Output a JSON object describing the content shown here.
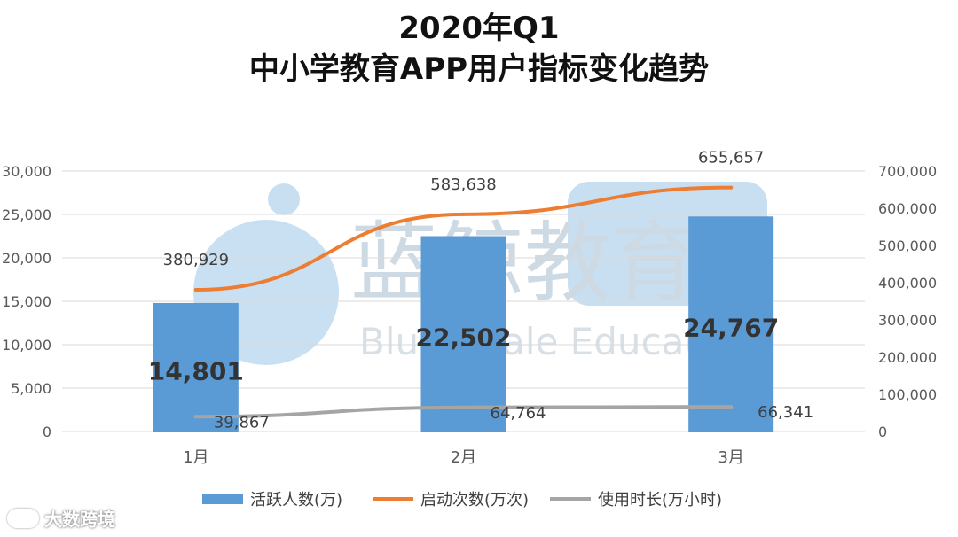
{
  "title_line1": "2020年Q1",
  "title_line2": "中小学教育APP用户指标变化趋势",
  "watermark": {
    "cn": "蓝鲸教育",
    "en": "BlueWhale Education",
    "color": "#7fb2dd"
  },
  "source_label": "大数跨境",
  "colors": {
    "bar": "#5b9bd5",
    "launches": "#ed7d31",
    "usage": "#a5a5a5",
    "grid": "#d9d9d9",
    "axis_text": "#595959"
  },
  "chart_data": {
    "type": "bar",
    "categories": [
      "1月",
      "2月",
      "3月"
    ],
    "series": [
      {
        "name": "活跃人数(万)",
        "type": "bar",
        "axis": "left",
        "values": [
          14801,
          22502,
          24767
        ],
        "labels": [
          "14,801",
          "22,502",
          "24,767"
        ]
      },
      {
        "name": "启动次数(万次)",
        "type": "line",
        "axis": "right",
        "values": [
          380929,
          583638,
          655657
        ],
        "labels": [
          "380,929",
          "583,638",
          "655,657"
        ]
      },
      {
        "name": "使用时长(万小时)",
        "type": "line",
        "axis": "right",
        "values": [
          39867,
          64764,
          66341
        ],
        "labels": [
          "39,867",
          "64,764",
          "66,341"
        ]
      }
    ],
    "left_axis": {
      "min": 0,
      "max": 30000,
      "step": 5000,
      "ticks": [
        "0",
        "5,000",
        "10,000",
        "15,000",
        "20,000",
        "25,000",
        "30,000"
      ]
    },
    "right_axis": {
      "min": 0,
      "max": 700000,
      "step": 100000,
      "ticks": [
        "0",
        "100,000",
        "200,000",
        "300,000",
        "400,000",
        "500,000",
        "600,000",
        "700,000"
      ]
    },
    "grid": true,
    "legend": "bottom"
  }
}
